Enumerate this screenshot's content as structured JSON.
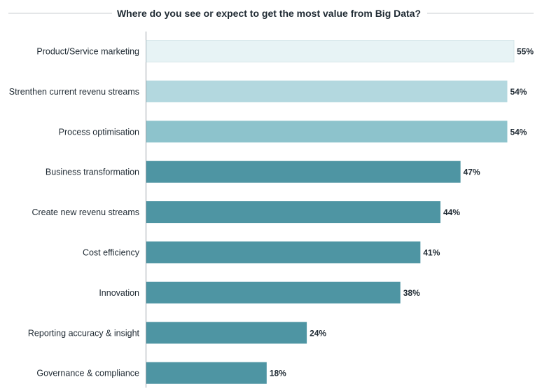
{
  "chart_data": {
    "type": "bar",
    "orientation": "horizontal",
    "title": "Where do you see or expect to get the most value from Big Data?",
    "categories": [
      "Product/Service marketing",
      "Strenthen current revenu streams",
      "Process optimisation",
      "Business transformation",
      "Create new revenu streams",
      "Cost efficiency",
      "Innovation",
      "Reporting accuracy & insight",
      "Governance & compliance"
    ],
    "values": [
      55,
      54,
      54,
      47,
      44,
      41,
      38,
      24,
      18
    ],
    "value_labels": [
      "55%",
      "54%",
      "54%",
      "47%",
      "44%",
      "41%",
      "38%",
      "24%",
      "18%"
    ],
    "bar_colors": [
      "#e7f3f5",
      "#b3d8df",
      "#8dc3cc",
      "#4e95a3",
      "#4e95a3",
      "#4e95a3",
      "#4e95a3",
      "#4e95a3",
      "#4e95a3"
    ],
    "xlim": [
      0,
      55
    ],
    "grid": false,
    "legend": "none"
  }
}
